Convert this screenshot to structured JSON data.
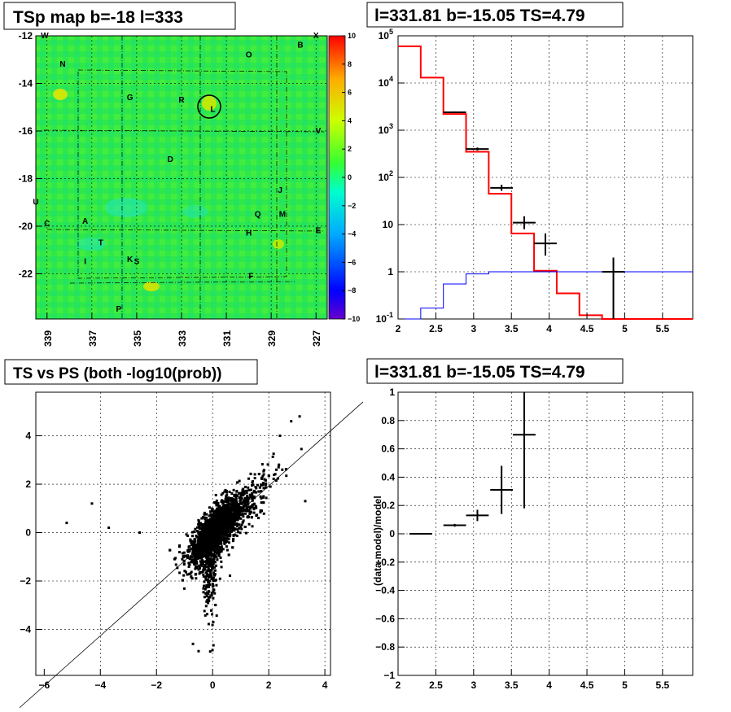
{
  "chart_data": [
    {
      "type": "heatmap",
      "title": "TSp map b=-18 l=333",
      "xlim": [
        339.5,
        326.5
      ],
      "ylim": [
        -23.9,
        -12
      ],
      "x_ticks": [
        "339",
        "337",
        "335",
        "333",
        "331",
        "329",
        "327"
      ],
      "y_ticks": [
        "-12",
        "-14",
        "-16",
        "-18",
        "-20",
        "-22"
      ],
      "colorbar": {
        "range": [
          -10,
          10
        ],
        "ticks": [
          "10",
          "8",
          "6",
          "4",
          "2",
          "0",
          "−2",
          "−4",
          "−6",
          "−8",
          "−10"
        ]
      },
      "grid": true,
      "sources": [
        {
          "label": "W",
          "l": 339.1,
          "b": -12.1
        },
        {
          "label": "X",
          "l": 327.0,
          "b": -12.1
        },
        {
          "label": "B",
          "l": 327.7,
          "b": -12.5
        },
        {
          "label": "O",
          "l": 330.0,
          "b": -12.9
        },
        {
          "label": "N",
          "l": 338.3,
          "b": -13.3
        },
        {
          "label": "G",
          "l": 335.3,
          "b": -14.7
        },
        {
          "label": "R",
          "l": 333.0,
          "b": -14.8
        },
        {
          "label": "L",
          "l": 331.6,
          "b": -15.2
        },
        {
          "label": "V",
          "l": 326.9,
          "b": -16.1
        },
        {
          "label": "D",
          "l": 333.5,
          "b": -17.3
        },
        {
          "label": "J",
          "l": 328.6,
          "b": -18.6
        },
        {
          "label": "U",
          "l": 339.5,
          "b": -19.1
        },
        {
          "label": "Q",
          "l": 329.6,
          "b": -19.6
        },
        {
          "label": "M",
          "l": 328.5,
          "b": -19.6
        },
        {
          "label": "C",
          "l": 339.0,
          "b": -20.0
        },
        {
          "label": "A",
          "l": 337.3,
          "b": -19.9
        },
        {
          "label": "E",
          "l": 326.9,
          "b": -20.3
        },
        {
          "label": "H",
          "l": 330.0,
          "b": -20.4
        },
        {
          "label": "T",
          "l": 336.6,
          "b": -20.8
        },
        {
          "label": "K",
          "l": 335.3,
          "b": -21.5
        },
        {
          "label": "S",
          "l": 335.0,
          "b": -21.6
        },
        {
          "label": "I",
          "l": 337.3,
          "b": -21.6
        },
        {
          "label": "F",
          "l": 329.9,
          "b": -22.2
        },
        {
          "label": "P",
          "l": 335.8,
          "b": -23.6
        }
      ],
      "candidate": {
        "l": 331.81,
        "b": -15.05
      }
    },
    {
      "type": "line",
      "title": "l=331.81 b=-15.05 TS=4.79",
      "xlim": [
        2,
        5.9
      ],
      "ylim": [
        0.1,
        100000
      ],
      "yscale": "log",
      "grid": true,
      "x_ticks": [
        "2",
        "2.5",
        "3",
        "3.5",
        "4",
        "4.5",
        "5",
        "5.5"
      ],
      "y_ticks": [
        "10^-1",
        "1",
        "10",
        "10^2",
        "10^3",
        "10^4",
        "10^5"
      ],
      "series": [
        {
          "color": "#ff0000",
          "style": "step",
          "edges": [
            2.0,
            2.3,
            2.6,
            2.9,
            3.2,
            3.5,
            3.8,
            4.1,
            4.4,
            4.7,
            5.0,
            5.9
          ],
          "values": [
            60000,
            13000,
            2200,
            350,
            45,
            6.5,
            1.05,
            0.35,
            0.12,
            0.1,
            0.1
          ]
        },
        {
          "color": "#0000ff",
          "style": "step",
          "edges": [
            2.0,
            2.3,
            2.6,
            2.9,
            3.2,
            3.5,
            3.8,
            4.1,
            4.4,
            4.7,
            5.0,
            5.9
          ],
          "values": [
            0.1,
            0.17,
            0.55,
            0.9,
            1.0,
            1.0,
            1.0,
            1.0,
            1.0,
            1.0,
            1.0
          ]
        },
        {
          "color": "#000000",
          "style": "errorbars",
          "points": [
            {
              "x": 2.75,
              "xerr": 0.15,
              "y": 2400,
              "ylo": 2300,
              "yhi": 2500
            },
            {
              "x": 3.05,
              "xerr": 0.15,
              "y": 400,
              "ylo": 370,
              "yhi": 430
            },
            {
              "x": 3.37,
              "xerr": 0.15,
              "y": 60,
              "ylo": 52,
              "yhi": 70
            },
            {
              "x": 3.67,
              "xerr": 0.15,
              "y": 11,
              "ylo": 8,
              "yhi": 15
            },
            {
              "x": 3.95,
              "xerr": 0.15,
              "y": 4,
              "ylo": 2.2,
              "yhi": 6.5
            },
            {
              "x": 4.85,
              "xerr": 0.15,
              "y": 1.0,
              "ylo": 0.1,
              "yhi": 2.0
            }
          ]
        }
      ]
    },
    {
      "type": "scatter",
      "title": "TS vs PS (both -log10(prob))",
      "xlim": [
        -6.3,
        4.2
      ],
      "ylim": [
        -5.9,
        5.8
      ],
      "grid": true,
      "x_ticks": [
        "−6",
        "−4",
        "−2",
        "0",
        "2",
        "4"
      ],
      "y_ticks": [
        "4",
        "2",
        "0",
        "−2",
        "−4"
      ],
      "diagonal": "y = x"
    },
    {
      "type": "line",
      "title": "l=331.81 b=-15.05 TS=4.79",
      "ylabel": "(data-model)/model",
      "xlim": [
        2,
        5.9
      ],
      "ylim": [
        -1,
        1
      ],
      "grid": true,
      "x_ticks": [
        "2",
        "2.5",
        "3",
        "3.5",
        "4",
        "4.5",
        "5",
        "5.5"
      ],
      "y_ticks": [
        "1",
        "0.8",
        "0.6",
        "0.4",
        "0.2",
        "0",
        "−0.2",
        "−0.4",
        "−0.6",
        "−0.8",
        "−1"
      ],
      "points": [
        {
          "x": 2.3,
          "xerr": 0.15,
          "y": 0.0,
          "ylo": 0.0,
          "yhi": 0.0
        },
        {
          "x": 2.75,
          "xerr": 0.15,
          "y": 0.06,
          "ylo": 0.05,
          "yhi": 0.07
        },
        {
          "x": 3.05,
          "xerr": 0.15,
          "y": 0.13,
          "ylo": 0.09,
          "yhi": 0.17
        },
        {
          "x": 3.37,
          "xerr": 0.15,
          "y": 0.31,
          "ylo": 0.14,
          "yhi": 0.48
        },
        {
          "x": 3.67,
          "xerr": 0.15,
          "y": 0.7,
          "ylo": 0.18,
          "yhi": 1.0
        }
      ]
    }
  ]
}
